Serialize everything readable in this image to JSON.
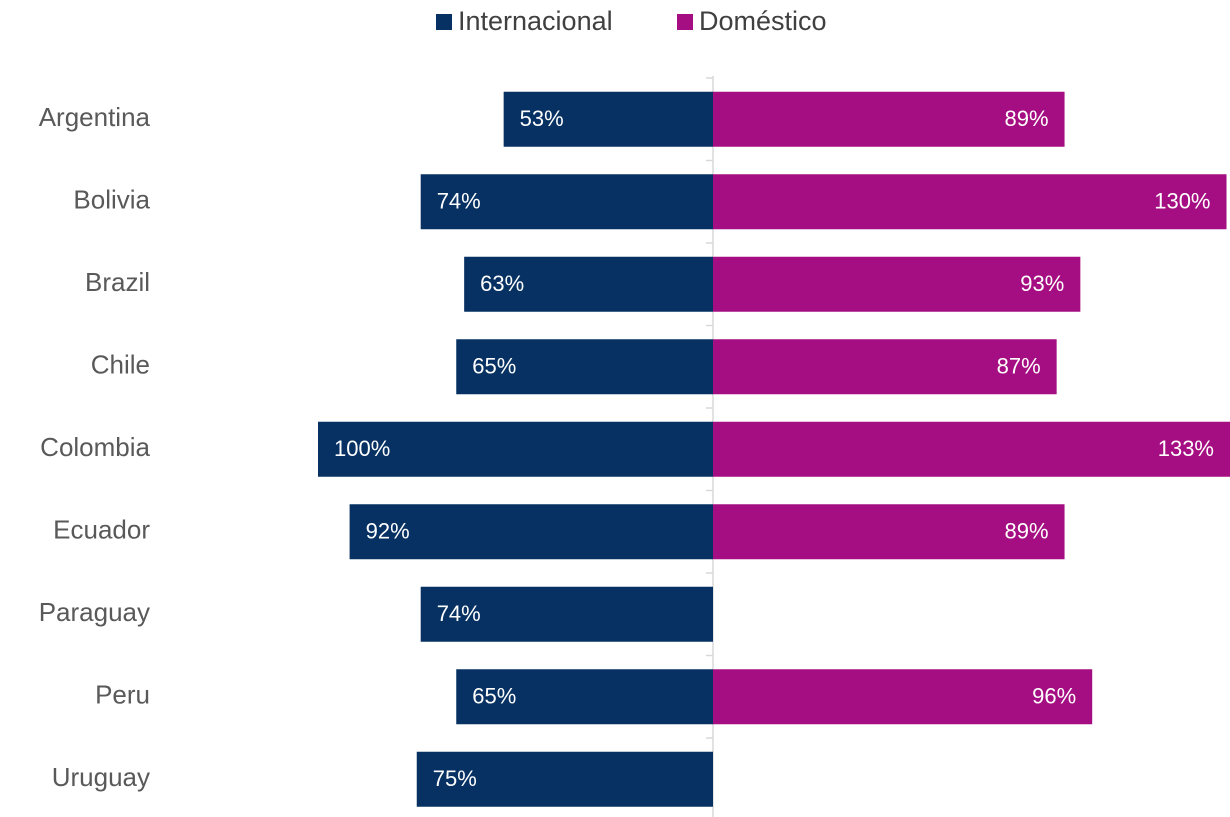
{
  "chart_data": {
    "type": "diverging-bar",
    "categories": [
      "Argentina",
      "Bolivia",
      "Brazil",
      "Chile",
      "Colombia",
      "Ecuador",
      "Paraguay",
      "Peru",
      "Uruguay"
    ],
    "series": [
      {
        "name": "Internacional",
        "color": "#073163",
        "side": "left",
        "values": [
          53,
          74,
          63,
          65,
          100,
          92,
          74,
          65,
          75
        ],
        "value_labels": [
          "53%",
          "74%",
          "63%",
          "65%",
          "100%",
          "92%",
          "74%",
          "65%",
          "75%"
        ]
      },
      {
        "name": "Doméstico",
        "color": "#a50e82",
        "side": "right",
        "values": [
          89,
          130,
          93,
          87,
          133,
          89,
          null,
          96,
          null
        ],
        "value_labels": [
          "89%",
          "130%",
          "93%",
          "87%",
          "133%",
          "89%",
          null,
          "96%",
          null
        ]
      }
    ],
    "legend": "top"
  }
}
